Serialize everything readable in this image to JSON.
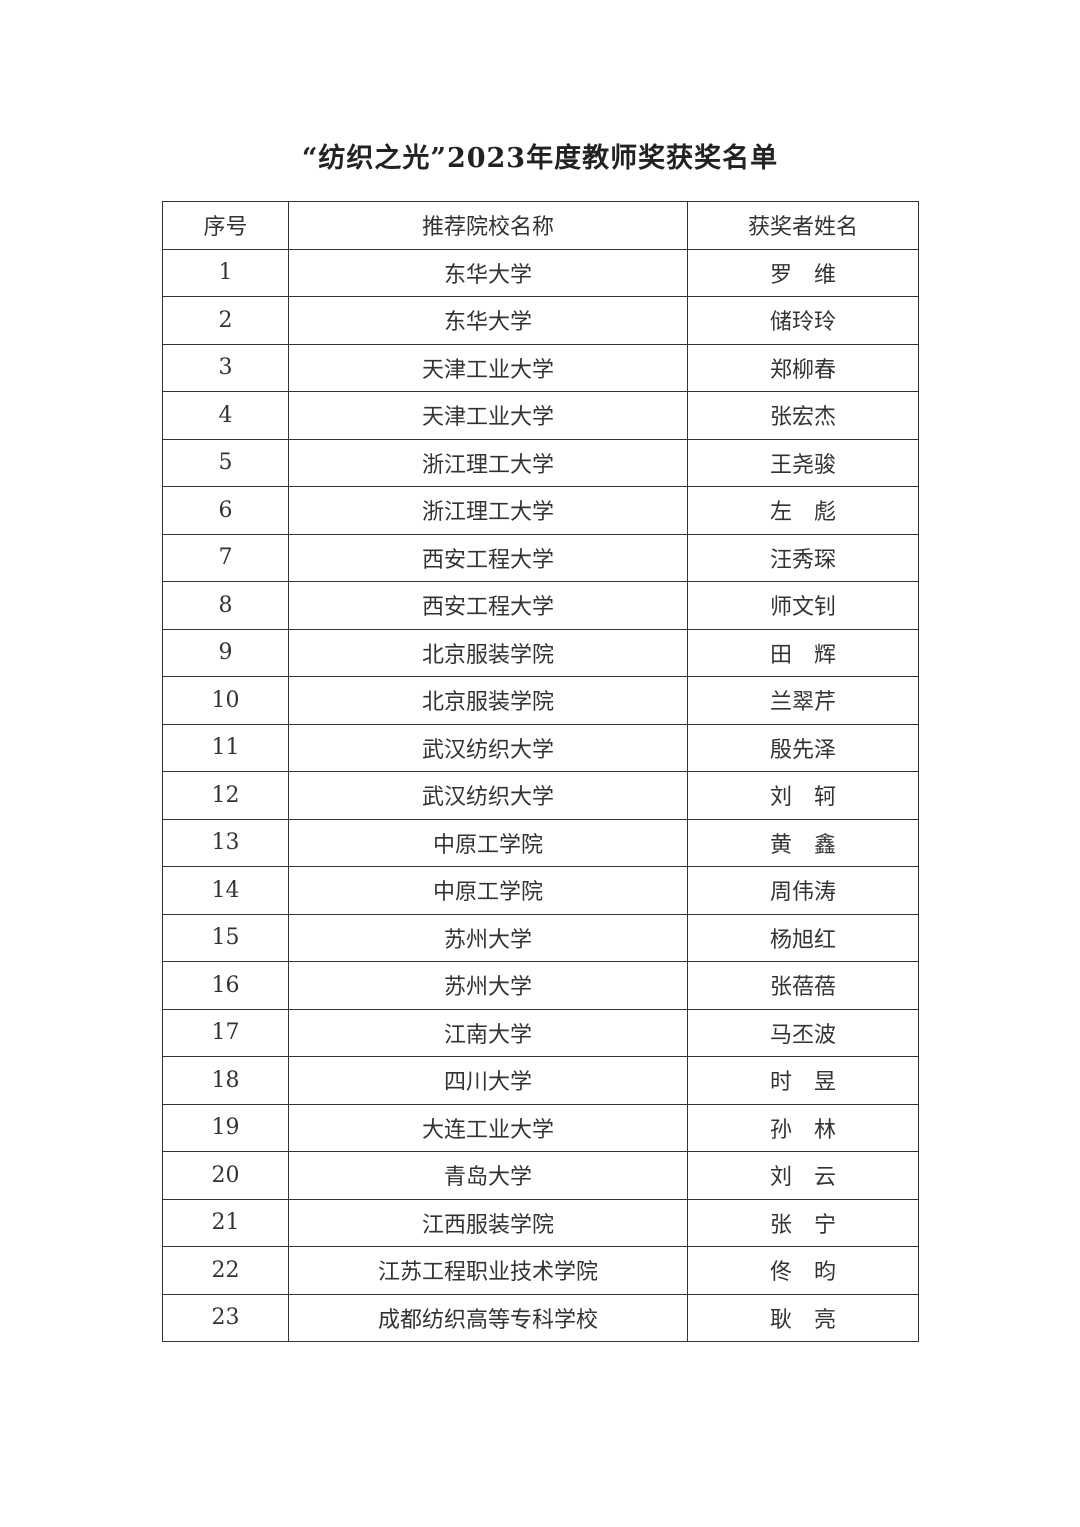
{
  "title": "“纺织之光”2023年度教师奖获奖名单",
  "headers": [
    "序号",
    "推荐院校名称",
    "获奖者姓名"
  ],
  "rows": [
    [
      "1",
      "东华大学",
      "罗　维"
    ],
    [
      "2",
      "东华大学",
      "储玲玲"
    ],
    [
      "3",
      "天津工业大学",
      "郑柳春"
    ],
    [
      "4",
      "天津工业大学",
      "张宏杰"
    ],
    [
      "5",
      "浙江理工大学",
      "王尧骏"
    ],
    [
      "6",
      "浙江理工大学",
      "左　彪"
    ],
    [
      "7",
      "西安工程大学",
      "汪秀琛"
    ],
    [
      "8",
      "西安工程大学",
      "师文钊"
    ],
    [
      "9",
      "北京服装学院",
      "田　辉"
    ],
    [
      "10",
      "北京服装学院",
      "兰翠芹"
    ],
    [
      "11",
      "武汉纺织大学",
      "殷先泽"
    ],
    [
      "12",
      "武汉纺织大学",
      "刘　轲"
    ],
    [
      "13",
      "中原工学院",
      "黄　鑫"
    ],
    [
      "14",
      "中原工学院",
      "周伟涛"
    ],
    [
      "15",
      "苏州大学",
      "杨旭红"
    ],
    [
      "16",
      "苏州大学",
      "张蓓蓓"
    ],
    [
      "17",
      "江南大学",
      "马丕波"
    ],
    [
      "18",
      "四川大学",
      "时　昱"
    ],
    [
      "19",
      "大连工业大学",
      "孙　林"
    ],
    [
      "20",
      "青岛大学",
      "刘　云"
    ],
    [
      "21",
      "江西服装学院",
      "张　宁"
    ],
    [
      "22",
      "江苏工程职业技术学院",
      "佟　昀"
    ],
    [
      "23",
      "成都纺织高等专科学校",
      "耿　亮"
    ]
  ]
}
